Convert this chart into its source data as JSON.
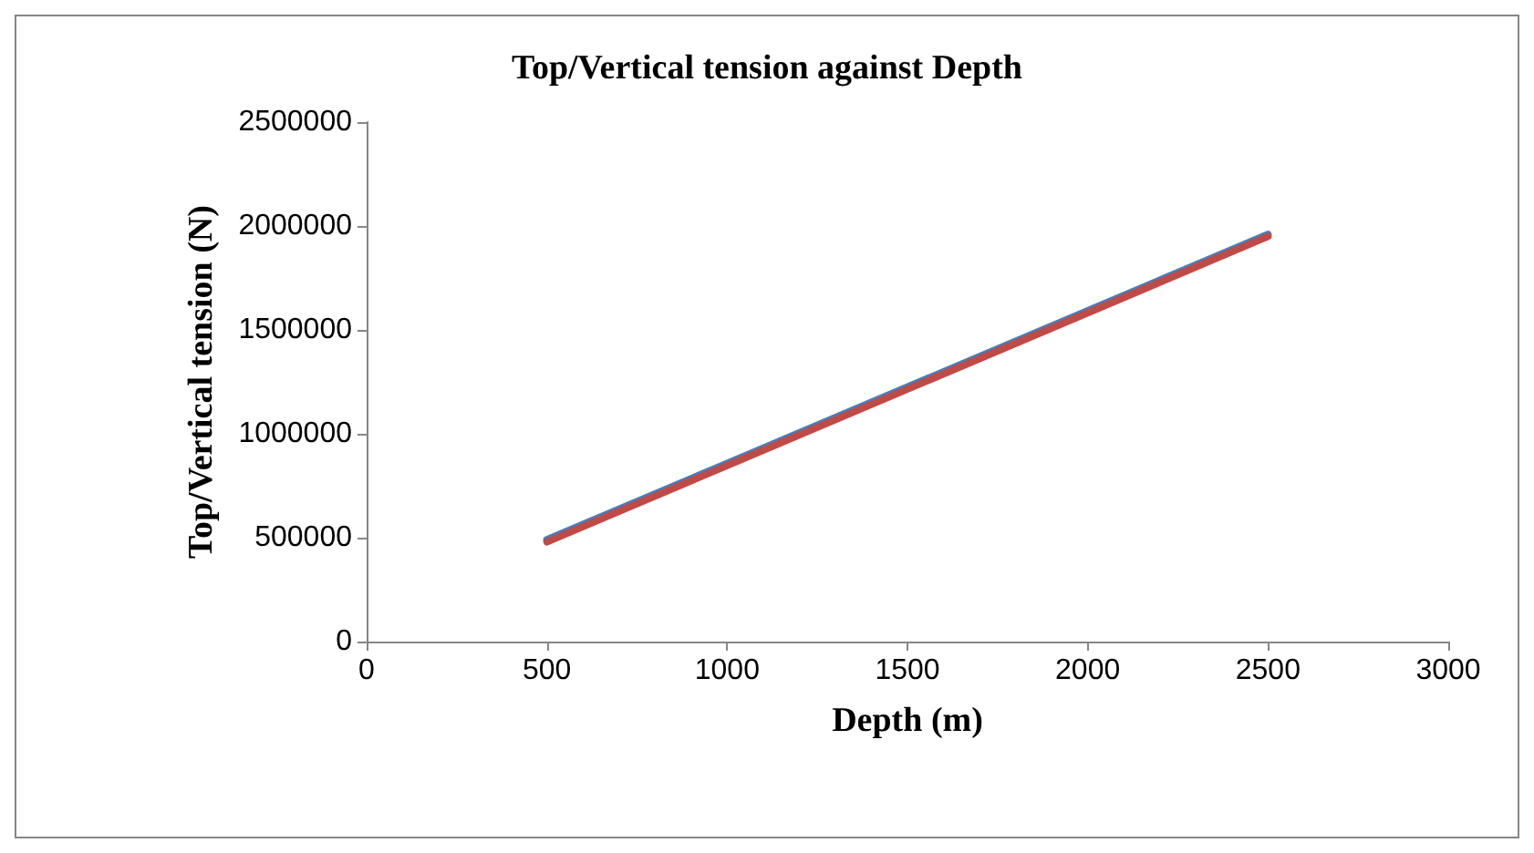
{
  "chart_data": {
    "type": "line",
    "title": "Top/Vertical tension against Depth",
    "xlabel": "Depth (m)",
    "ylabel": "Top/Vertical tension (N)",
    "x": [
      500,
      2500
    ],
    "series": [
      {
        "color": "#4a7ebb",
        "values": [
          490000,
          1960000
        ]
      },
      {
        "color": "#be4b48",
        "values": [
          480000,
          1950000
        ]
      }
    ],
    "xlim": [
      0,
      3000
    ],
    "xticks": [
      0,
      500,
      1000,
      1500,
      2000,
      2500,
      3000
    ],
    "ylim": [
      0,
      2500000
    ],
    "yticks": [
      0,
      500000,
      1000000,
      1500000,
      2000000,
      2500000
    ],
    "grid": false,
    "marker": "none",
    "line_style": "solid"
  }
}
